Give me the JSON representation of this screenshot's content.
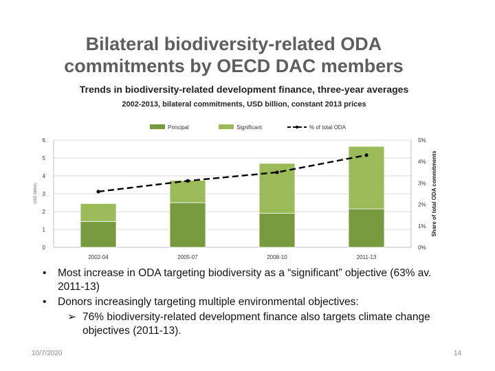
{
  "slide": {
    "title": "Bilateral biodiversity-related ODA commitments by OECD DAC members",
    "date": "10/7/2020",
    "page": "14"
  },
  "chart_data": {
    "type": "bar",
    "stacked": true,
    "title": "Trends in biodiversity-related development finance, three-year averages",
    "subtitle": "2002-2013, bilateral commitments, USD billion, constant 2013 prices",
    "categories": [
      "2002-04",
      "2005-07",
      "2008-10",
      "2011-13"
    ],
    "series": [
      {
        "name": "Principal",
        "values": [
          1.45,
          2.5,
          1.9,
          2.15
        ],
        "color": "#779a3e"
      },
      {
        "name": "Significant",
        "values": [
          1.0,
          1.25,
          2.8,
          3.5
        ],
        "color": "#9bbb59"
      }
    ],
    "line_series": {
      "name": "% of total ODA",
      "values": [
        2.6,
        3.1,
        3.5,
        4.3
      ],
      "color": "#000000"
    },
    "y_ticks": [
      "0",
      "1",
      "2",
      "3",
      "4",
      "5",
      "6"
    ],
    "ylim": [
      0,
      6
    ],
    "y2_ticks": [
      "0%",
      "1%",
      "2%",
      "3%",
      "4%",
      "5%"
    ],
    "y2lim": [
      0,
      5
    ],
    "ylabel": "USD billion",
    "y2label": "Share of total ODA commitments",
    "legend_position": "top"
  },
  "bullets": {
    "b1": "Most increase in ODA targeting biodiversity as a “significant” objective (63% av. 2011-13)",
    "b2": "Donors increasingly targeting multiple environmental objectives:",
    "b2_sub": "76% biodiversity-related development finance also targets climate change objectives (2011-13)."
  },
  "glyphs": {
    "bullet": "•",
    "arrow": "➢"
  }
}
